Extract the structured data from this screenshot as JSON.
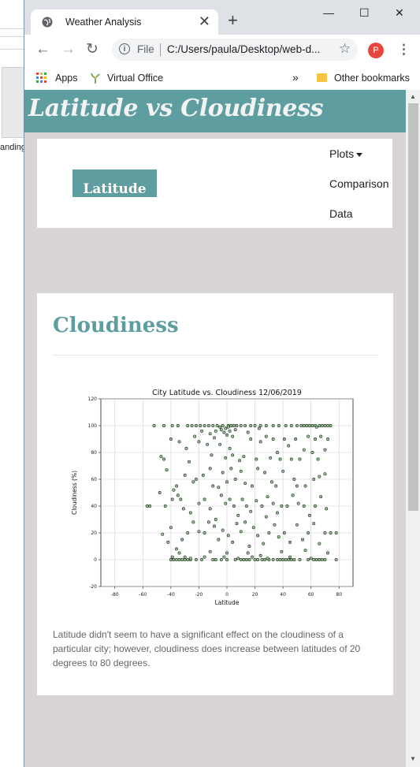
{
  "desktop": {
    "partial_text": "anding"
  },
  "browser": {
    "tab_title": "Weather Analysis",
    "tab_close": "✕",
    "new_tab": "+",
    "window_controls": {
      "minimize": "—",
      "maximize": "☐",
      "close": "✕"
    },
    "nav": {
      "back": "←",
      "forward": "→",
      "reload": "↻"
    },
    "address": {
      "scheme_label": "File",
      "url": "C:/Users/paula/Desktop/web-d..."
    },
    "star": "☆",
    "profile_initial": "P",
    "menu": "⋮",
    "bookmarks": {
      "apps": "Apps",
      "virtual_office": "Virtual Office",
      "overflow": "»",
      "other": "Other bookmarks"
    }
  },
  "page": {
    "header_title": "Latitude vs Cloudiness",
    "brand": "Latitude",
    "nav_links": {
      "plots": "Plots",
      "comparison": "Comparison",
      "data": "Data"
    },
    "section_title": "Cloudiness",
    "caption": "Latitude didn't seem to have a significant effect on the cloudiness of a particular city; however, cloudiness does increase between latitudes of 20 degrees to 80 degrees."
  },
  "colors": {
    "accent": "#5f9ea0",
    "page_bg": "#d9d5d4",
    "point_fill": "#90c48a",
    "point_edge": "#1a1a1a"
  },
  "chart_data": {
    "type": "scatter",
    "title": "City Latitude vs. Cloudiness 12/06/2019",
    "xlabel": "Latitude",
    "ylabel": "Cloudiness (%)",
    "xlim": [
      -90,
      90
    ],
    "ylim": [
      -20,
      120
    ],
    "xticks": [
      -80,
      -60,
      -40,
      -20,
      0,
      20,
      40,
      60,
      80
    ],
    "yticks": [
      -20,
      0,
      20,
      40,
      60,
      80,
      100,
      120
    ],
    "grid": true,
    "points": [
      [
        -52,
        100
      ],
      [
        -45,
        100
      ],
      [
        -39,
        100
      ],
      [
        -35,
        100
      ],
      [
        -28,
        100
      ],
      [
        -25,
        100
      ],
      [
        -22,
        100
      ],
      [
        -19,
        100
      ],
      [
        -16,
        100
      ],
      [
        -13,
        100
      ],
      [
        -10,
        100
      ],
      [
        -7,
        100
      ],
      [
        -5,
        99
      ],
      [
        -3,
        100
      ],
      [
        -1,
        98
      ],
      [
        1,
        100
      ],
      [
        2,
        96
      ],
      [
        3,
        100
      ],
      [
        4,
        92
      ],
      [
        5,
        100
      ],
      [
        7,
        100
      ],
      [
        10,
        100
      ],
      [
        13,
        100
      ],
      [
        17,
        100
      ],
      [
        20,
        100
      ],
      [
        24,
        100
      ],
      [
        28,
        100
      ],
      [
        33,
        100
      ],
      [
        37,
        100
      ],
      [
        42,
        100
      ],
      [
        46,
        100
      ],
      [
        50,
        100
      ],
      [
        53,
        100
      ],
      [
        55,
        100
      ],
      [
        57,
        100
      ],
      [
        59,
        100
      ],
      [
        61,
        100
      ],
      [
        63,
        100
      ],
      [
        64,
        99
      ],
      [
        66,
        100
      ],
      [
        68,
        100
      ],
      [
        70,
        100
      ],
      [
        72,
        100
      ],
      [
        74,
        100
      ],
      [
        -4,
        97
      ],
      [
        -2,
        95
      ],
      [
        0,
        93
      ],
      [
        1,
        99
      ],
      [
        6,
        97
      ],
      [
        -8,
        96
      ],
      [
        -12,
        94
      ],
      [
        -18,
        96
      ],
      [
        -40,
        0
      ],
      [
        -38,
        0
      ],
      [
        -36,
        0
      ],
      [
        -34,
        0
      ],
      [
        -32,
        0
      ],
      [
        -30,
        0
      ],
      [
        -28,
        0
      ],
      [
        -26,
        0
      ],
      [
        -22,
        0
      ],
      [
        -18,
        0
      ],
      [
        -10,
        0
      ],
      [
        -8,
        0
      ],
      [
        -4,
        0
      ],
      [
        0,
        0
      ],
      [
        6,
        0
      ],
      [
        10,
        0
      ],
      [
        12,
        0
      ],
      [
        14,
        0
      ],
      [
        16,
        0
      ],
      [
        20,
        0
      ],
      [
        22,
        0
      ],
      [
        25,
        0
      ],
      [
        27,
        0
      ],
      [
        30,
        0
      ],
      [
        33,
        0
      ],
      [
        36,
        0
      ],
      [
        38,
        0
      ],
      [
        40,
        0
      ],
      [
        42,
        0
      ],
      [
        44,
        0
      ],
      [
        46,
        0
      ],
      [
        48,
        0
      ],
      [
        52,
        0
      ],
      [
        58,
        0
      ],
      [
        62,
        0
      ],
      [
        64,
        0
      ],
      [
        66,
        0
      ],
      [
        68,
        0
      ],
      [
        70,
        0
      ],
      [
        78,
        0
      ],
      [
        -39,
        2
      ],
      [
        -30,
        2
      ],
      [
        -26,
        1
      ],
      [
        -16,
        2
      ],
      [
        -2,
        2
      ],
      [
        8,
        1
      ],
      [
        18,
        2
      ],
      [
        29,
        1
      ],
      [
        45,
        2
      ],
      [
        60,
        1
      ],
      [
        -47,
        77
      ],
      [
        -45,
        75
      ],
      [
        -40,
        90
      ],
      [
        -34,
        88
      ],
      [
        -29,
        83
      ],
      [
        -27,
        73
      ],
      [
        -20,
        88
      ],
      [
        -14,
        86
      ],
      [
        -11,
        78
      ],
      [
        -5,
        86
      ],
      [
        -1,
        76
      ],
      [
        2,
        83
      ],
      [
        4,
        78
      ],
      [
        9,
        74
      ],
      [
        12,
        77
      ],
      [
        17,
        90
      ],
      [
        21,
        75
      ],
      [
        24,
        88
      ],
      [
        28,
        92
      ],
      [
        31,
        76
      ],
      [
        33,
        90
      ],
      [
        36,
        80
      ],
      [
        38,
        75
      ],
      [
        41,
        90
      ],
      [
        44,
        85
      ],
      [
        46,
        75
      ],
      [
        49,
        90
      ],
      [
        52,
        75
      ],
      [
        55,
        82
      ],
      [
        58,
        92
      ],
      [
        61,
        80
      ],
      [
        63,
        90
      ],
      [
        65,
        75
      ],
      [
        67,
        92
      ],
      [
        70,
        82
      ],
      [
        72,
        90
      ],
      [
        23,
        98
      ],
      [
        15,
        95
      ],
      [
        -9,
        91
      ],
      [
        -23,
        92
      ],
      [
        -43,
        67
      ],
      [
        -38,
        52
      ],
      [
        -36,
        55
      ],
      [
        -33,
        45
      ],
      [
        -30,
        63
      ],
      [
        -24,
        58
      ],
      [
        -22,
        60
      ],
      [
        -17,
        63
      ],
      [
        -12,
        68
      ],
      [
        -10,
        55
      ],
      [
        -6,
        54
      ],
      [
        -3,
        65
      ],
      [
        0,
        58
      ],
      [
        3,
        68
      ],
      [
        6,
        60
      ],
      [
        10,
        66
      ],
      [
        13,
        57
      ],
      [
        18,
        55
      ],
      [
        22,
        68
      ],
      [
        27,
        65
      ],
      [
        32,
        58
      ],
      [
        35,
        55
      ],
      [
        40,
        66
      ],
      [
        48,
        60
      ],
      [
        50,
        55
      ],
      [
        56,
        55
      ],
      [
        62,
        60
      ],
      [
        66,
        62
      ],
      [
        70,
        64
      ],
      [
        -48,
        50
      ],
      [
        -44,
        40
      ],
      [
        -39,
        45
      ],
      [
        -35,
        48
      ],
      [
        -31,
        38
      ],
      [
        -26,
        35
      ],
      [
        -20,
        42
      ],
      [
        -16,
        45
      ],
      [
        -12,
        38
      ],
      [
        -8,
        30
      ],
      [
        -4,
        48
      ],
      [
        -1,
        42
      ],
      [
        2,
        45
      ],
      [
        5,
        40
      ],
      [
        8,
        33
      ],
      [
        11,
        45
      ],
      [
        14,
        40
      ],
      [
        17,
        36
      ],
      [
        21,
        44
      ],
      [
        25,
        40
      ],
      [
        29,
        47
      ],
      [
        33,
        42
      ],
      [
        36,
        35
      ],
      [
        39,
        40
      ],
      [
        43,
        40
      ],
      [
        47,
        48
      ],
      [
        51,
        42
      ],
      [
        55,
        40
      ],
      [
        59,
        33
      ],
      [
        63,
        40
      ],
      [
        67,
        47
      ],
      [
        71,
        38
      ],
      [
        -55,
        40
      ],
      [
        -57,
        40
      ],
      [
        28,
        32
      ],
      [
        -46,
        19
      ],
      [
        -42,
        13
      ],
      [
        -40,
        24
      ],
      [
        -36,
        8
      ],
      [
        -32,
        15
      ],
      [
        -28,
        20
      ],
      [
        -24,
        28
      ],
      [
        -20,
        21
      ],
      [
        -16,
        20
      ],
      [
        -13,
        28
      ],
      [
        -9,
        25
      ],
      [
        -6,
        15
      ],
      [
        -3,
        22
      ],
      [
        1,
        18
      ],
      [
        4,
        13
      ],
      [
        7,
        27
      ],
      [
        10,
        21
      ],
      [
        13,
        28
      ],
      [
        16,
        10
      ],
      [
        19,
        24
      ],
      [
        22,
        18
      ],
      [
        26,
        12
      ],
      [
        30,
        20
      ],
      [
        34,
        26
      ],
      [
        37,
        17
      ],
      [
        41,
        20
      ],
      [
        45,
        13
      ],
      [
        50,
        26
      ],
      [
        54,
        15
      ],
      [
        58,
        20
      ],
      [
        62,
        27
      ],
      [
        66,
        12
      ],
      [
        70,
        20
      ],
      [
        74,
        20
      ],
      [
        78,
        20
      ],
      [
        -34,
        5
      ],
      [
        0,
        5
      ],
      [
        15,
        5
      ],
      [
        39,
        6
      ],
      [
        56,
        7
      ],
      [
        72,
        5
      ],
      [
        24,
        3
      ],
      [
        -12,
        6
      ]
    ]
  }
}
